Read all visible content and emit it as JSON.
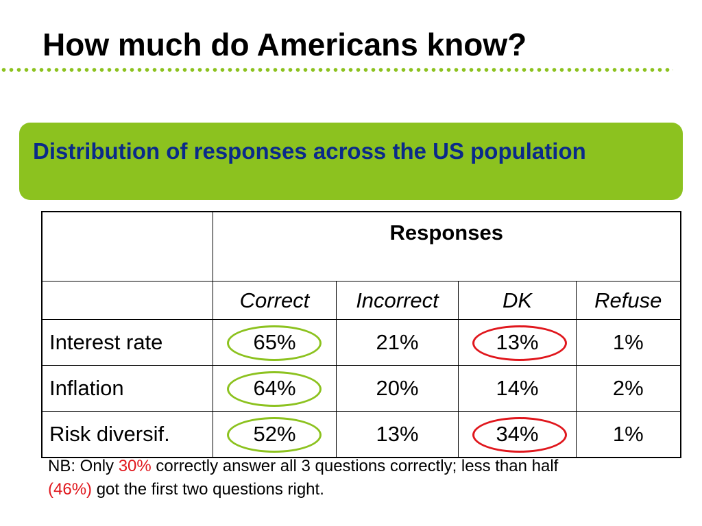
{
  "title": "How much do Americans know?",
  "banner": {
    "text": "Distribution of responses across the US population"
  },
  "table": {
    "group_header": "Responses",
    "columns": [
      "Correct",
      "Incorrect",
      "DK",
      "Refuse"
    ],
    "rows": [
      {
        "label": "Interest rate",
        "values": [
          "65%",
          "21%",
          "13%",
          "1%"
        ]
      },
      {
        "label": "Inflation",
        "values": [
          "64%",
          "20%",
          "14%",
          "2%"
        ]
      },
      {
        "label": "Risk diversif.",
        "values": [
          "52%",
          "13%",
          "34%",
          "1%"
        ]
      }
    ],
    "highlight_colors": {
      "green": "#8cc21f",
      "red": "#e0171d"
    }
  },
  "note": {
    "p1": "NB: Only ",
    "hl1": "30%",
    "p2": " correctly answer all 3 questions correctly; less than half",
    "hl2": "(46%)",
    "p3": " got the first two questions right."
  },
  "colors": {
    "accent": "#8cc21f",
    "banner_text": "#0a2a8a",
    "highlight": "#e0171d"
  }
}
